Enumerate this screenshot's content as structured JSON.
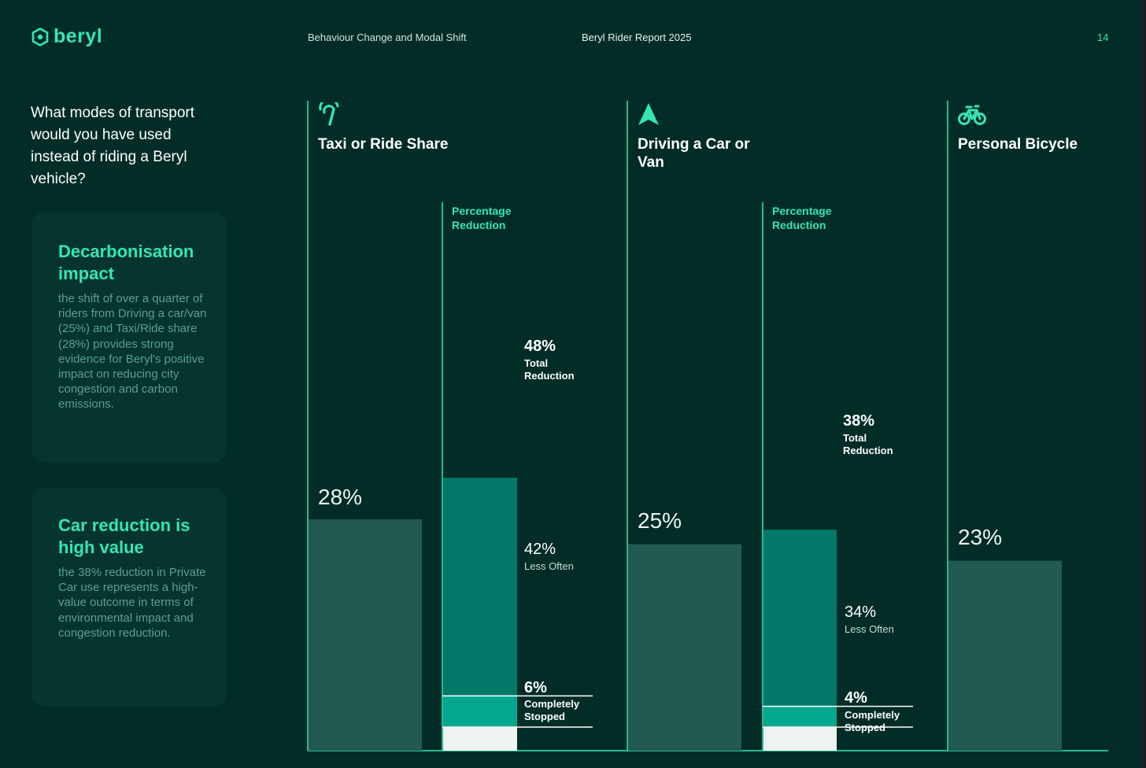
{
  "header": {
    "logo_text": "beryl",
    "section": "Behaviour Change and Modal Shift",
    "report_title": "Beryl Rider Report 2025",
    "page_number": "14"
  },
  "question": "What modes of transport would you have used instead of riding a Beryl vehicle?",
  "cards": [
    {
      "title": "Decarbonisation impact",
      "text": "the shift of over a quarter of riders from Driving a car/van (25%) and Taxi/Ride share (28%) provides strong evidence for Beryl's positive impact on reducing city congestion and carbon emissions."
    },
    {
      "title": "Car reduction is high value",
      "text": "the 38% reduction in Private Car use represents a high-value outcome in terms of environmental impact and congestion reduction."
    }
  ],
  "colors": {
    "background": "#022d27",
    "accent": "#35e6b4",
    "share_bar": "#235a50",
    "less_often": "#03796a",
    "completely_stopped": "#03a88e",
    "remainder": "#eef2f1"
  },
  "chart_data": {
    "type": "bar",
    "title": "What modes of transport would you have used instead of riding a Beryl vehicle?",
    "ylim": [
      0,
      100
    ],
    "categories": [
      "Taxi or Ride Share",
      "Driving a Car or Van",
      "Personal Bicycle"
    ],
    "icons": [
      "taxi-icon",
      "car-navigation-icon",
      "bicycle-icon"
    ],
    "share_series": {
      "name": "Share of riders",
      "values": [
        28,
        25,
        23
      ],
      "labels": [
        "28%",
        "25%",
        "23%"
      ]
    },
    "reduction_heading": "Percentage Reduction",
    "reductions": [
      {
        "category": "Taxi or Ride Share",
        "total": 48,
        "total_label": "48%",
        "total_caption": "Total Reduction",
        "less_often": 42,
        "less_often_label": "42%",
        "less_often_caption": "Less Often",
        "completely_stopped": 6,
        "completely_stopped_label": "6%",
        "completely_stopped_caption": "Completely Stopped"
      },
      {
        "category": "Driving a Car or Van",
        "total": 38,
        "total_label": "38%",
        "total_caption": "Total Reduction",
        "less_often": 34,
        "less_often_label": "34%",
        "less_often_caption": "Less Often",
        "completely_stopped": 4,
        "completely_stopped_label": "4%",
        "completely_stopped_caption": "Completely Stopped"
      }
    ]
  }
}
